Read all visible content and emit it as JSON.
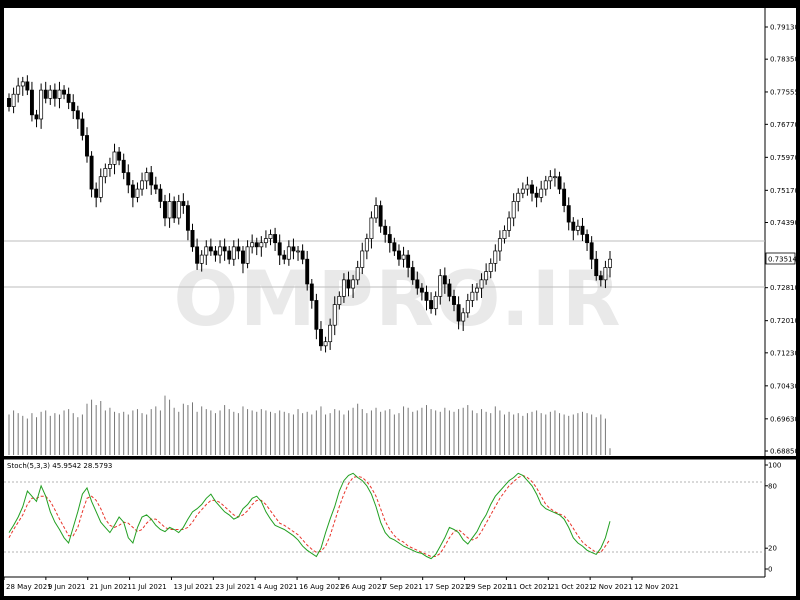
{
  "chart_data": {
    "type": "candlestick",
    "price_axis": {
      "ticks": [
        "0.79130",
        "0.78350",
        "0.77555",
        "0.76770",
        "0.75970",
        "0.75170",
        "0.74390",
        "0.73514",
        "0.72810",
        "0.72010",
        "0.71230",
        "0.70430",
        "0.69630",
        "0.68850"
      ],
      "current_price": "0.73514",
      "ylim": [
        0.6885,
        0.7913
      ]
    },
    "date_labels": [
      "28 May 2021",
      "9 Jun 2021",
      "21 Jun 2021",
      "1 Jul 2021",
      "13 Jul 2021",
      "23 Jul 2021",
      "4 Aug 2021",
      "16 Aug 2021",
      "26 Aug 2021",
      "7 Sep 2021",
      "17 Sep 2021",
      "29 Sep 2021",
      "11 Oct 2021",
      "21 Oct 2021",
      "2 Nov 2021",
      "12 Nov 2021"
    ],
    "closes": [
      0.772,
      0.775,
      0.777,
      0.778,
      0.776,
      0.77,
      0.769,
      0.776,
      0.774,
      0.776,
      0.774,
      0.776,
      0.775,
      0.773,
      0.771,
      0.769,
      0.765,
      0.76,
      0.752,
      0.75,
      0.755,
      0.757,
      0.758,
      0.761,
      0.759,
      0.756,
      0.753,
      0.75,
      0.752,
      0.754,
      0.756,
      0.753,
      0.752,
      0.749,
      0.745,
      0.749,
      0.745,
      0.749,
      0.748,
      0.742,
      0.738,
      0.734,
      0.736,
      0.738,
      0.737,
      0.736,
      0.738,
      0.737,
      0.735,
      0.738,
      0.737,
      0.734,
      0.738,
      0.739,
      0.738,
      0.739,
      0.74,
      0.741,
      0.739,
      0.736,
      0.735,
      0.738,
      0.737,
      0.737,
      0.735,
      0.729,
      0.725,
      0.718,
      0.714,
      0.715,
      0.719,
      0.724,
      0.726,
      0.73,
      0.728,
      0.73,
      0.733,
      0.737,
      0.74,
      0.745,
      0.748,
      0.743,
      0.741,
      0.739,
      0.737,
      0.735,
      0.736,
      0.733,
      0.73,
      0.728,
      0.727,
      0.725,
      0.723,
      0.726,
      0.731,
      0.729,
      0.726,
      0.724,
      0.72,
      0.722,
      0.725,
      0.727,
      0.728,
      0.73,
      0.732,
      0.734,
      0.737,
      0.74,
      0.742,
      0.745,
      0.749,
      0.751,
      0.752,
      0.753,
      0.751,
      0.75,
      0.752,
      0.754,
      0.755,
      0.755,
      0.752,
      0.748,
      0.744,
      0.742,
      0.743,
      0.741,
      0.739,
      0.735,
      0.731,
      0.73,
      0.733,
      0.735
    ],
    "volume": [
      30,
      33,
      31,
      29,
      27,
      31,
      28,
      32,
      33,
      29,
      31,
      30,
      33,
      34,
      31,
      28,
      30,
      38,
      41,
      37,
      40,
      33,
      35,
      32,
      31,
      32,
      30,
      33,
      34,
      31,
      30,
      34,
      36,
      33,
      44,
      41,
      35,
      32,
      38,
      37,
      39,
      32,
      36,
      34,
      33,
      31,
      33,
      37,
      34,
      32,
      31,
      36,
      34,
      33,
      32,
      34,
      33,
      32,
      31,
      33,
      32,
      31,
      30,
      34,
      31,
      32,
      30,
      33,
      36,
      30,
      31,
      34,
      33,
      30,
      33,
      35,
      38,
      34,
      31,
      33,
      35,
      32,
      33,
      34,
      30,
      31,
      36,
      35,
      32,
      33,
      35,
      37,
      34,
      33,
      32,
      35,
      33,
      32,
      34,
      35,
      37,
      33,
      31,
      34,
      32,
      31,
      36,
      33,
      30,
      32,
      30,
      31,
      29,
      31,
      32,
      33,
      31,
      30,
      32,
      33,
      31,
      30,
      29,
      30,
      31,
      32,
      31,
      30,
      28,
      30,
      27,
      5
    ],
    "stochastic": {
      "label": "Stoch(5,3,3) 45.9542 28.5793",
      "levels": [
        20,
        80
      ],
      "ticks": [
        "100",
        "80",
        "20",
        "0"
      ],
      "main": [
        35,
        42,
        50,
        60,
        75,
        70,
        65,
        80,
        70,
        55,
        45,
        38,
        30,
        25,
        40,
        55,
        72,
        78,
        65,
        55,
        45,
        40,
        35,
        42,
        50,
        45,
        30,
        25,
        40,
        50,
        52,
        48,
        42,
        38,
        36,
        40,
        38,
        35,
        40,
        48,
        55,
        58,
        62,
        68,
        72,
        65,
        60,
        55,
        52,
        48,
        50,
        58,
        62,
        68,
        70,
        65,
        55,
        48,
        42,
        40,
        38,
        35,
        32,
        28,
        22,
        18,
        15,
        12,
        20,
        35,
        48,
        60,
        75,
        85,
        90,
        92,
        88,
        85,
        80,
        72,
        60,
        45,
        35,
        30,
        28,
        25,
        22,
        20,
        18,
        16,
        15,
        12,
        10,
        14,
        22,
        30,
        40,
        38,
        35,
        28,
        24,
        30,
        36,
        45,
        52,
        62,
        70,
        75,
        80,
        85,
        88,
        92,
        90,
        85,
        80,
        72,
        62,
        58,
        56,
        54,
        52,
        48,
        40,
        30,
        25,
        22,
        18,
        16,
        14,
        20,
        30,
        45.95
      ],
      "signal": [
        30,
        38,
        45,
        52,
        62,
        68,
        68,
        70,
        70,
        65,
        57,
        48,
        40,
        32,
        32,
        40,
        55,
        68,
        70,
        66,
        58,
        48,
        42,
        40,
        42,
        45,
        44,
        40,
        36,
        38,
        44,
        48,
        48,
        44,
        40,
        38,
        38,
        38,
        38,
        40,
        45,
        52,
        57,
        62,
        66,
        66,
        64,
        60,
        56,
        52,
        50,
        52,
        56,
        62,
        66,
        66,
        62,
        56,
        50,
        44,
        42,
        39,
        36,
        33,
        28,
        23,
        19,
        16,
        17,
        22,
        32,
        46,
        60,
        72,
        82,
        88,
        89,
        88,
        84,
        78,
        70,
        58,
        46,
        38,
        32,
        28,
        26,
        22,
        20,
        18,
        16,
        14,
        12,
        12,
        15,
        22,
        30,
        36,
        38,
        34,
        30,
        28,
        30,
        36,
        44,
        52,
        60,
        68,
        74,
        80,
        84,
        88,
        90,
        88,
        84,
        78,
        70,
        62,
        58,
        55,
        53,
        51,
        46,
        39,
        32,
        26,
        22,
        19,
        16,
        16,
        22,
        28.58
      ]
    }
  },
  "watermark": "OMPRO.IR"
}
